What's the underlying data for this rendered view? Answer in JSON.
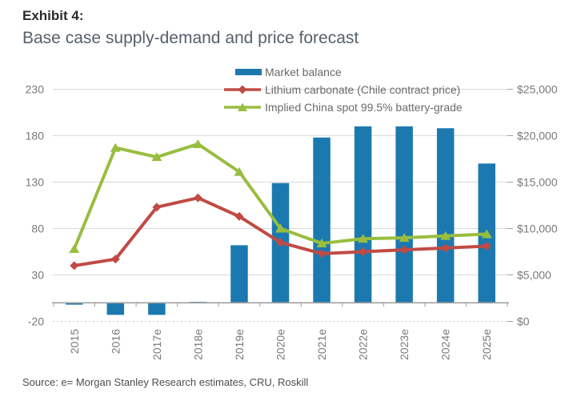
{
  "header": {
    "exhibit_label": "Exhibit 4:",
    "title": "Base case supply-demand and price forecast"
  },
  "footer": {
    "source": "Source: e= Morgan Stanley Research estimates, CRU, Roskill"
  },
  "chart_data": {
    "type": "combo",
    "title": "Base case supply-demand and price forecast",
    "categories": [
      "2015",
      "2016",
      "2017e",
      "2018e",
      "2019e",
      "2020e",
      "2021e",
      "2022e",
      "2023e",
      "2024e",
      "2025e"
    ],
    "series": [
      {
        "name": "Market balance",
        "type": "bar",
        "axis": "left",
        "color": "#1C79B0",
        "values": [
          -2,
          -13,
          -13,
          1,
          62,
          129,
          178,
          190,
          190,
          188,
          150
        ]
      },
      {
        "name": "Lithium carbonate (Chile contract price)",
        "type": "line",
        "marker": "diamond",
        "axis": "right",
        "color": "#C04B44",
        "values": [
          6000,
          6700,
          12300,
          13300,
          11300,
          8500,
          7300,
          7500,
          7700,
          7900,
          8100
        ]
      },
      {
        "name": "Implied China spot 99.5% battery-grade",
        "type": "line",
        "marker": "triangle",
        "axis": "right",
        "color": "#98BE40",
        "values": [
          7800,
          18700,
          17700,
          19100,
          16100,
          10000,
          8400,
          8900,
          9000,
          9200,
          9400
        ]
      }
    ],
    "left_axis": {
      "min": -20,
      "max": 230,
      "ticks": [
        230,
        180,
        130,
        80,
        30,
        -20
      ]
    },
    "right_axis": {
      "min": 0,
      "max": 25000,
      "tick_labels": [
        "$25,000",
        "$20,000",
        "$15,000",
        "$10,000",
        "$5,000",
        "$0"
      ]
    },
    "legend_position": "top",
    "grid": "horizontal",
    "colors": {
      "grid": "#D9D9D9",
      "grid_dashed": "#C4C4C4",
      "axis_line": "#A0A0A0",
      "axis_text": "#77797c"
    }
  }
}
